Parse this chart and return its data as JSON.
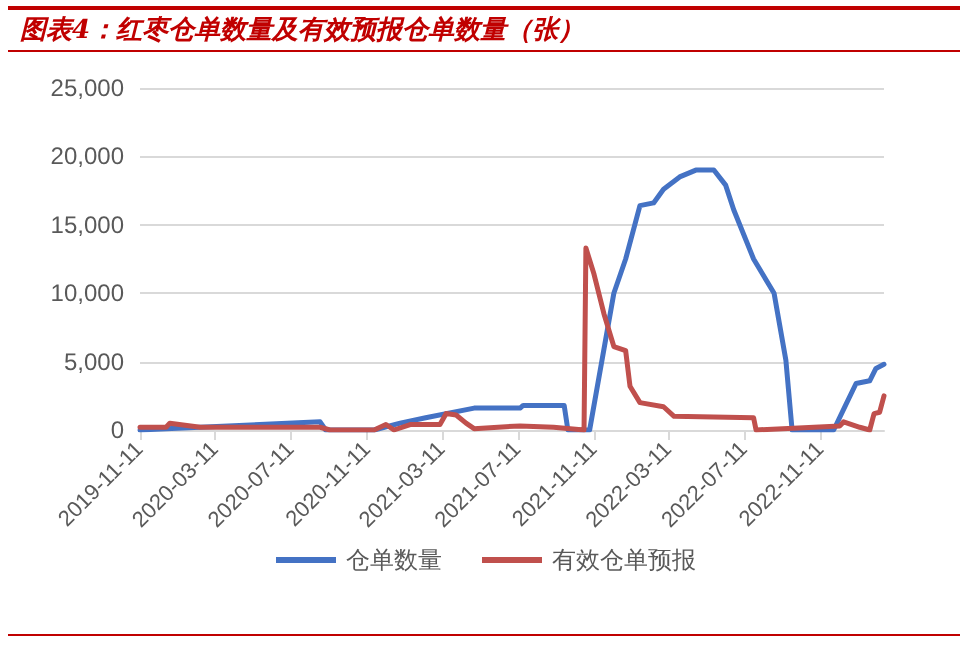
{
  "chart_data": {
    "type": "line",
    "title": "图表4：红枣仓单数量及有效预报仓单数量（张）",
    "xlim": [
      "2019-11-11",
      "2023-02-21"
    ],
    "xticks": [
      "2019-11-11",
      "2020-03-11",
      "2020-07-11",
      "2020-11-11",
      "2021-03-11",
      "2021-07-11",
      "2021-11-11",
      "2022-03-11",
      "2022-07-11",
      "2022-11-11"
    ],
    "ylim": [
      0,
      25000
    ],
    "yticks": [
      0,
      {
        "value": 5000,
        "label": "5,000"
      },
      {
        "value": 10000,
        "label": "10,000"
      },
      {
        "value": 15000,
        "label": "15,000"
      },
      {
        "value": 20000,
        "label": "20,000"
      },
      {
        "value": 25000,
        "label": "25,000"
      }
    ],
    "grid": "y",
    "legend": "bottom",
    "marker": "none",
    "line_style": "solid",
    "series": [
      {
        "name": "仓单数量",
        "color": "#4472c4",
        "x": [
          "2019-11-11",
          "2019-12-23",
          "2020-05-22",
          "2020-08-27",
          "2020-09-05",
          "2020-11-22",
          "2021-01-03",
          "2021-02-13",
          "2021-05-02",
          "2021-07-15",
          "2021-07-20",
          "2021-09-24",
          "2021-09-30",
          "2021-11-04",
          "2021-12-13",
          "2022-01-01",
          "2022-01-24",
          "2022-02-15",
          "2022-03-03",
          "2022-03-29",
          "2022-04-24",
          "2022-05-23",
          "2022-06-11",
          "2022-06-24",
          "2022-07-26",
          "2022-08-28",
          "2022-09-16",
          "2022-09-26",
          "2022-12-02",
          "2022-12-21",
          "2023-01-07",
          "2023-01-29",
          "2023-02-08",
          "2023-02-21"
        ],
        "values": [
          0,
          100,
          400,
          600,
          0,
          0,
          500,
          900,
          1600,
          1600,
          1800,
          1800,
          0,
          0,
          10000,
          12500,
          16400,
          16600,
          17600,
          18500,
          19000,
          19000,
          17900,
          16100,
          12500,
          10000,
          5100,
          0,
          0,
          1800,
          3400,
          3600,
          4500,
          4800
        ]
      },
      {
        "name": "有效仓单预报",
        "color": "#c0504d",
        "x": [
          "2019-11-11",
          "2019-12-23",
          "2019-12-29",
          "2020-02-16",
          "2020-08-27",
          "2020-09-12",
          "2020-11-22",
          "2020-12-11",
          "2020-12-24",
          "2021-01-19",
          "2021-03-08",
          "2021-03-18",
          "2021-04-03",
          "2021-04-19",
          "2021-05-02",
          "2021-07-15",
          "2021-09-07",
          "2021-10-26",
          "2021-10-29",
          "2021-11-11",
          "2021-11-27",
          "2021-12-13",
          "2022-01-01",
          "2022-01-08",
          "2022-01-24",
          "2022-03-03",
          "2022-03-20",
          "2022-07-26",
          "2022-07-30",
          "2022-12-12",
          "2022-12-18",
          "2023-01-13",
          "2023-01-29",
          "2023-02-05",
          "2023-02-14",
          "2023-02-21"
        ],
        "values": [
          200,
          200,
          500,
          200,
          200,
          0,
          0,
          400,
          0,
          400,
          400,
          1200,
          1100,
          500,
          100,
          300,
          200,
          0,
          13300,
          11400,
          8500,
          6100,
          5800,
          3200,
          2000,
          1700,
          1000,
          900,
          0,
          300,
          600,
          200,
          0,
          1200,
          1300,
          2500
        ]
      }
    ]
  }
}
